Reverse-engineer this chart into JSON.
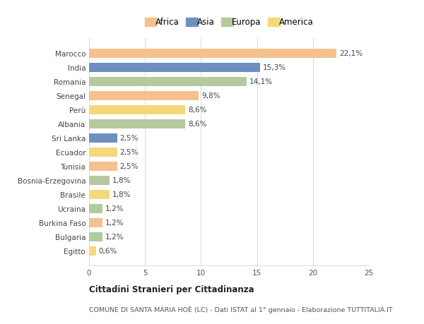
{
  "categories": [
    "Marocco",
    "India",
    "Romania",
    "Senegal",
    "Perù",
    "Albania",
    "Sri Lanka",
    "Ecuador",
    "Tunisia",
    "Bosnia-Erzegovina",
    "Brasile",
    "Ucraina",
    "Burkina Faso",
    "Bulgaria",
    "Egitto"
  ],
  "values": [
    22.1,
    15.3,
    14.1,
    9.8,
    8.6,
    8.6,
    2.5,
    2.5,
    2.5,
    1.8,
    1.8,
    1.2,
    1.2,
    1.2,
    0.6
  ],
  "labels": [
    "22,1%",
    "15,3%",
    "14,1%",
    "9,8%",
    "8,6%",
    "8,6%",
    "2,5%",
    "2,5%",
    "2,5%",
    "1,8%",
    "1,8%",
    "1,2%",
    "1,2%",
    "1,2%",
    "0,6%"
  ],
  "colors": [
    "#F5C18C",
    "#6F8FC0",
    "#B5C9A0",
    "#F5C18C",
    "#F5D87A",
    "#B5C9A0",
    "#6F8FC0",
    "#F5D87A",
    "#F5C18C",
    "#B5C9A0",
    "#F5D87A",
    "#B5C9A0",
    "#F5C18C",
    "#B5C9A0",
    "#F5D87A"
  ],
  "legend_labels": [
    "Africa",
    "Asia",
    "Europa",
    "America"
  ],
  "legend_colors": [
    "#F5C18C",
    "#6F8FC0",
    "#B5C9A0",
    "#F5D87A"
  ],
  "title": "Cittadini Stranieri per Cittadinanza",
  "subtitle": "COMUNE DI SANTA MARIA HOÈ (LC) - Dati ISTAT al 1° gennaio - Elaborazione TUTTITALIA.IT",
  "xlim": [
    0,
    25
  ],
  "xticks": [
    0,
    5,
    10,
    15,
    20,
    25
  ],
  "background_color": "#ffffff",
  "grid_color": "#dddddd"
}
